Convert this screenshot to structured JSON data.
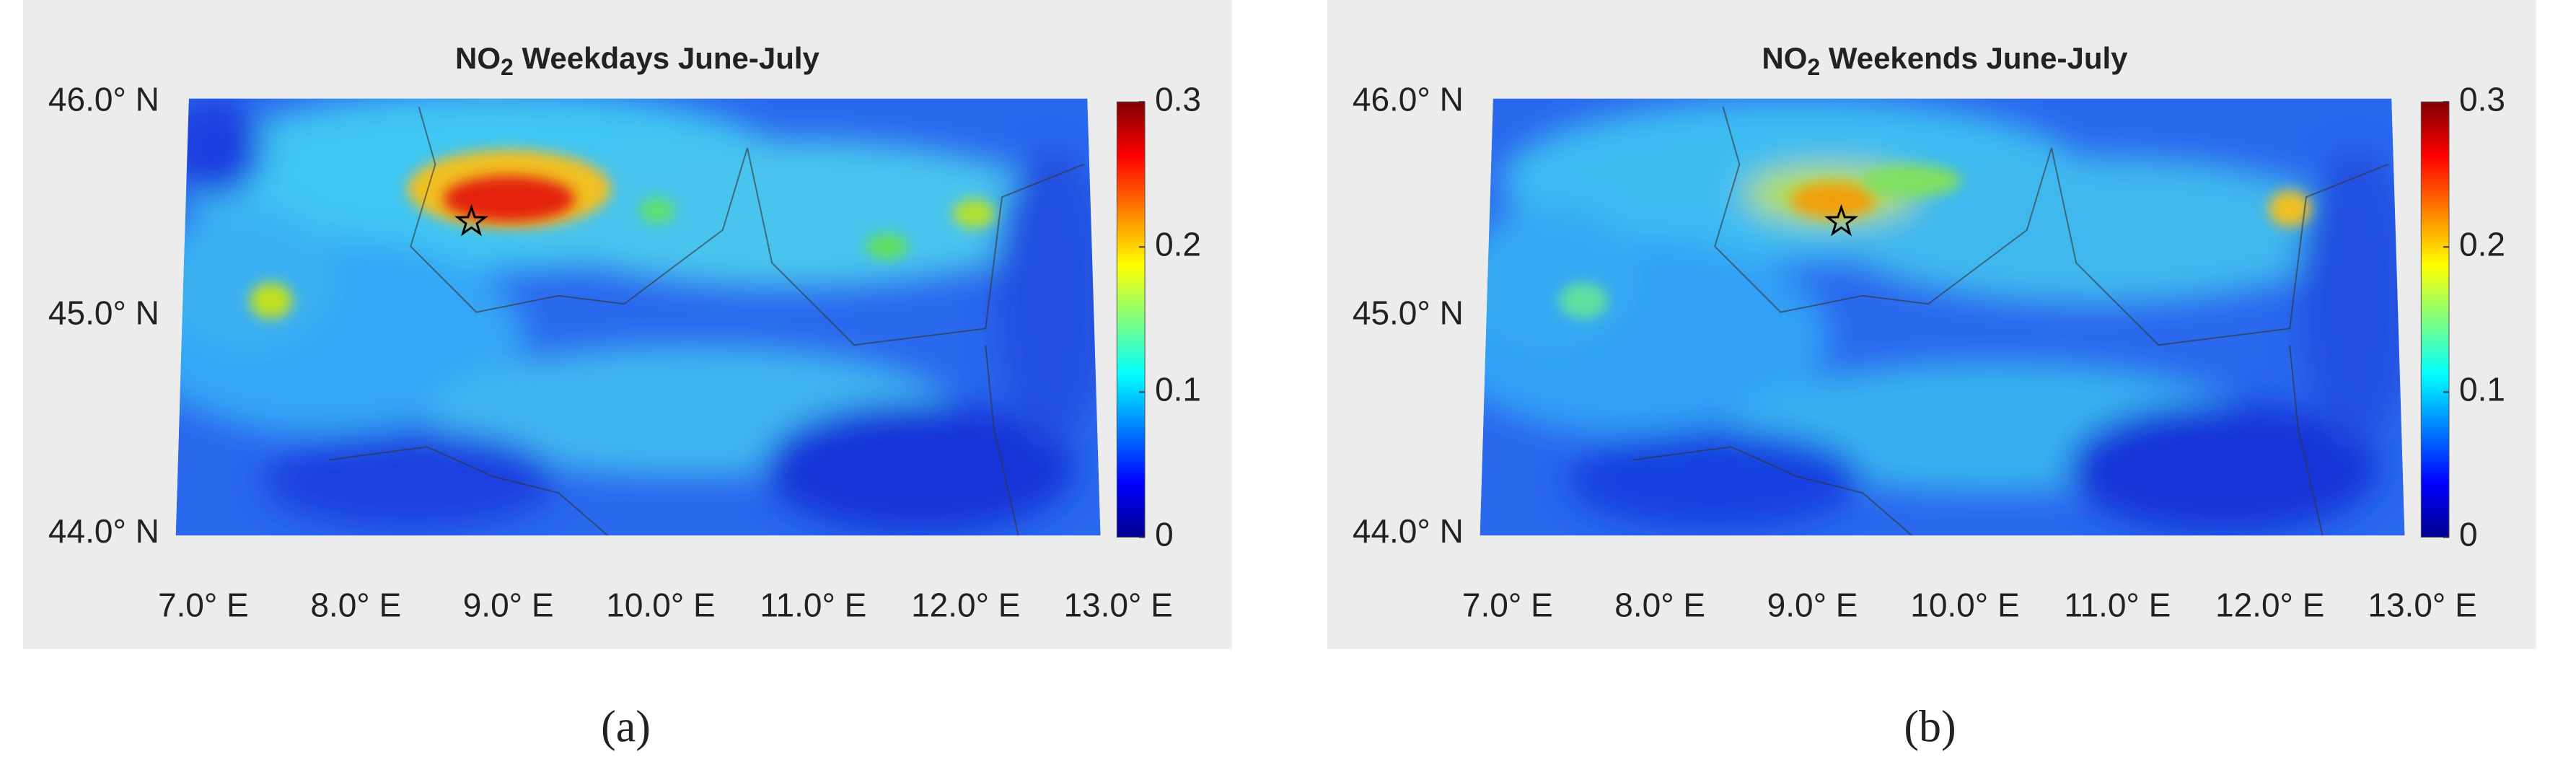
{
  "panels": [
    {
      "caption": "(a)",
      "title": {
        "base": "NO",
        "sub": "2",
        "rest": " Weekdays June-July"
      },
      "lat_labels": [
        "46.0° N",
        "45.0° N",
        "44.0° N"
      ],
      "lon_labels": [
        "7.0° E",
        "8.0° E",
        "9.0° E",
        "10.0° E",
        "11.0° E",
        "12.0° E",
        "13.0° E"
      ],
      "colorbar": {
        "lim": [
          0,
          0.3
        ],
        "ticks": [
          0,
          0.1,
          0.2,
          0.3
        ]
      }
    },
    {
      "caption": "(b)",
      "title": {
        "base": "NO",
        "sub": "2",
        "rest": " Weekends June-July"
      },
      "lat_labels": [
        "46.0° N",
        "45.0° N",
        "44.0° N"
      ],
      "lon_labels": [
        "7.0° E",
        "8.0° E",
        "9.0° E",
        "10.0° E",
        "11.0° E",
        "12.0° E",
        "13.0° E"
      ],
      "colorbar": {
        "lim": [
          0,
          0.3
        ],
        "ticks": [
          0,
          0.1,
          0.2,
          0.3
        ]
      }
    }
  ]
}
